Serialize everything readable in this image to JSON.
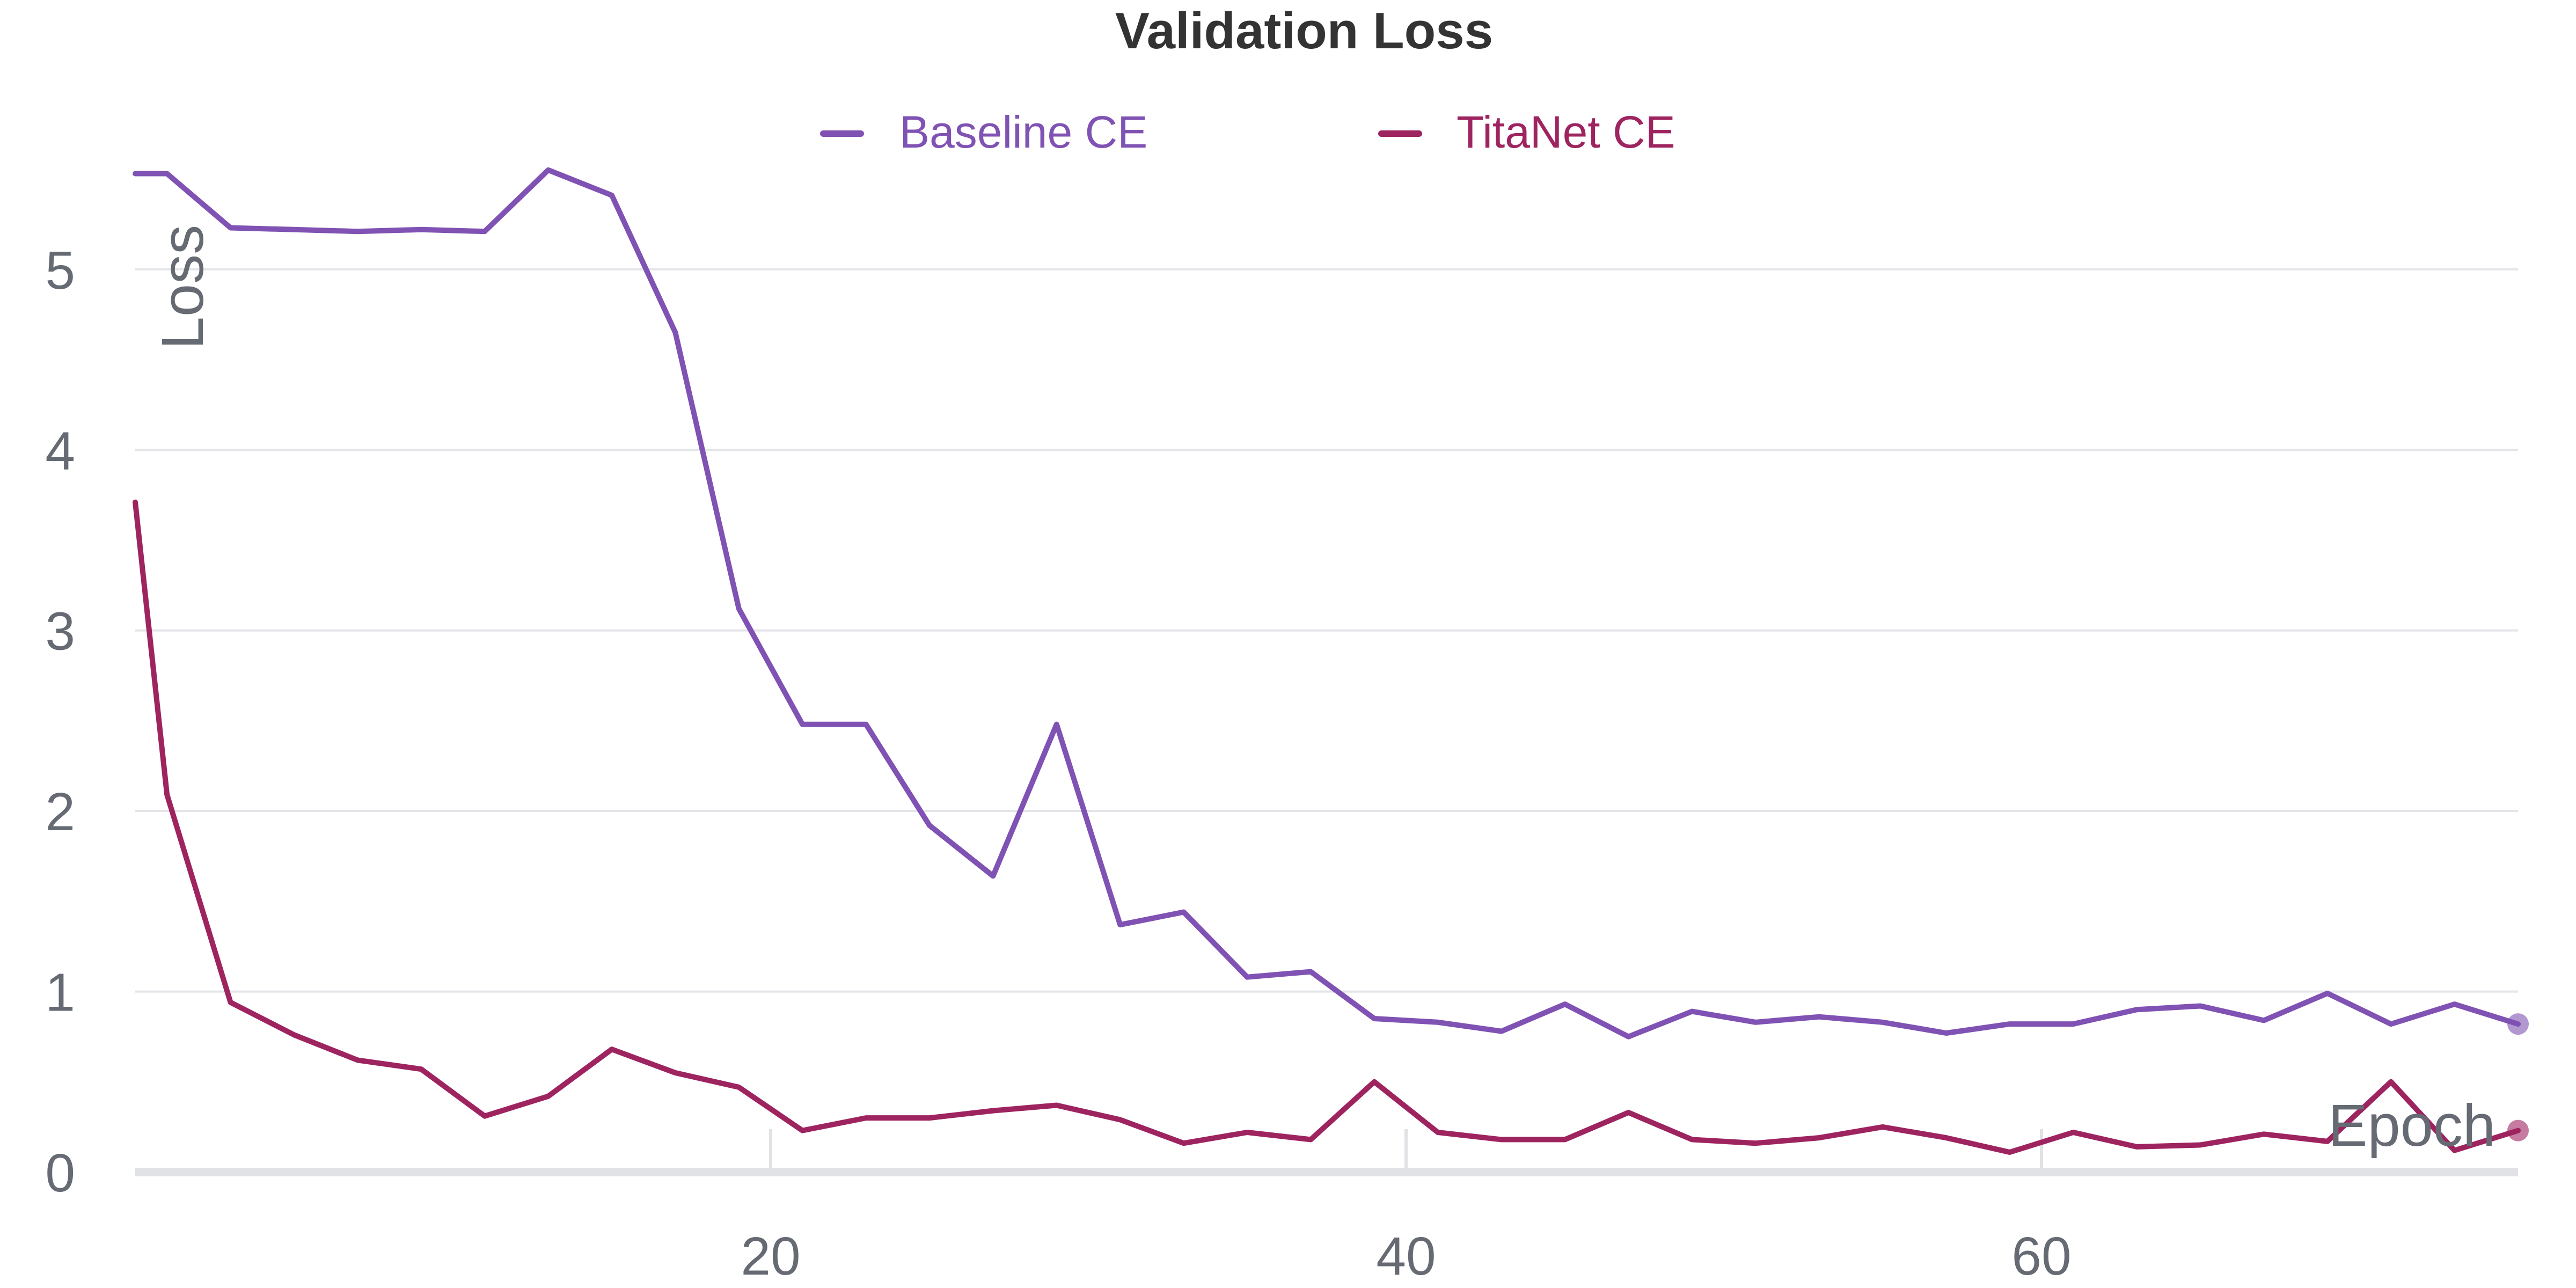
{
  "chart_data": {
    "type": "line",
    "title": "Validation Loss",
    "xlabel": "Epoch",
    "ylabel": "Loss",
    "xlim": [
      0,
      75
    ],
    "ylim": [
      0,
      5.6
    ],
    "xticks": [
      20,
      40,
      60
    ],
    "yticks": [
      0,
      1,
      2,
      3,
      4,
      5
    ],
    "grid": true,
    "legend": "top-center",
    "series": [
      {
        "name": "Baseline CE",
        "color": "#7f52b3",
        "x": [
          0,
          1,
          3,
          5,
          7,
          9,
          11,
          13,
          15,
          17,
          19,
          21,
          23,
          25,
          27,
          29,
          31,
          33,
          35,
          37,
          39,
          41,
          43,
          45,
          47,
          49,
          51,
          53,
          55,
          57,
          59,
          61,
          63,
          65,
          67,
          69,
          71,
          73,
          75
        ],
        "y": [
          5.53,
          5.53,
          5.23,
          5.22,
          5.21,
          5.22,
          5.21,
          5.55,
          5.41,
          4.65,
          3.12,
          2.48,
          2.48,
          1.92,
          1.64,
          2.48,
          1.37,
          1.44,
          1.08,
          1.11,
          0.85,
          0.83,
          0.78,
          0.93,
          0.75,
          0.89,
          0.83,
          0.86,
          0.83,
          0.77,
          0.82,
          0.82,
          0.9,
          0.92,
          0.84,
          0.99,
          0.82,
          0.93,
          0.82
        ]
      },
      {
        "name": "TitaNet CE",
        "color": "#9e2460",
        "x": [
          0,
          1,
          3,
          5,
          7,
          9,
          11,
          13,
          15,
          17,
          19,
          21,
          23,
          25,
          27,
          29,
          31,
          33,
          35,
          37,
          39,
          41,
          43,
          45,
          47,
          49,
          51,
          53,
          55,
          57,
          59,
          61,
          63,
          65,
          67,
          69,
          71,
          73,
          75
        ],
        "y": [
          3.71,
          2.09,
          0.94,
          0.76,
          0.62,
          0.57,
          0.31,
          0.42,
          0.68,
          0.55,
          0.47,
          0.23,
          0.3,
          0.3,
          0.34,
          0.37,
          0.29,
          0.16,
          0.22,
          0.18,
          0.5,
          0.22,
          0.18,
          0.18,
          0.33,
          0.18,
          0.16,
          0.19,
          0.25,
          0.19,
          0.11,
          0.22,
          0.14,
          0.15,
          0.21,
          0.17,
          0.5,
          0.12,
          0.23
        ]
      }
    ]
  }
}
